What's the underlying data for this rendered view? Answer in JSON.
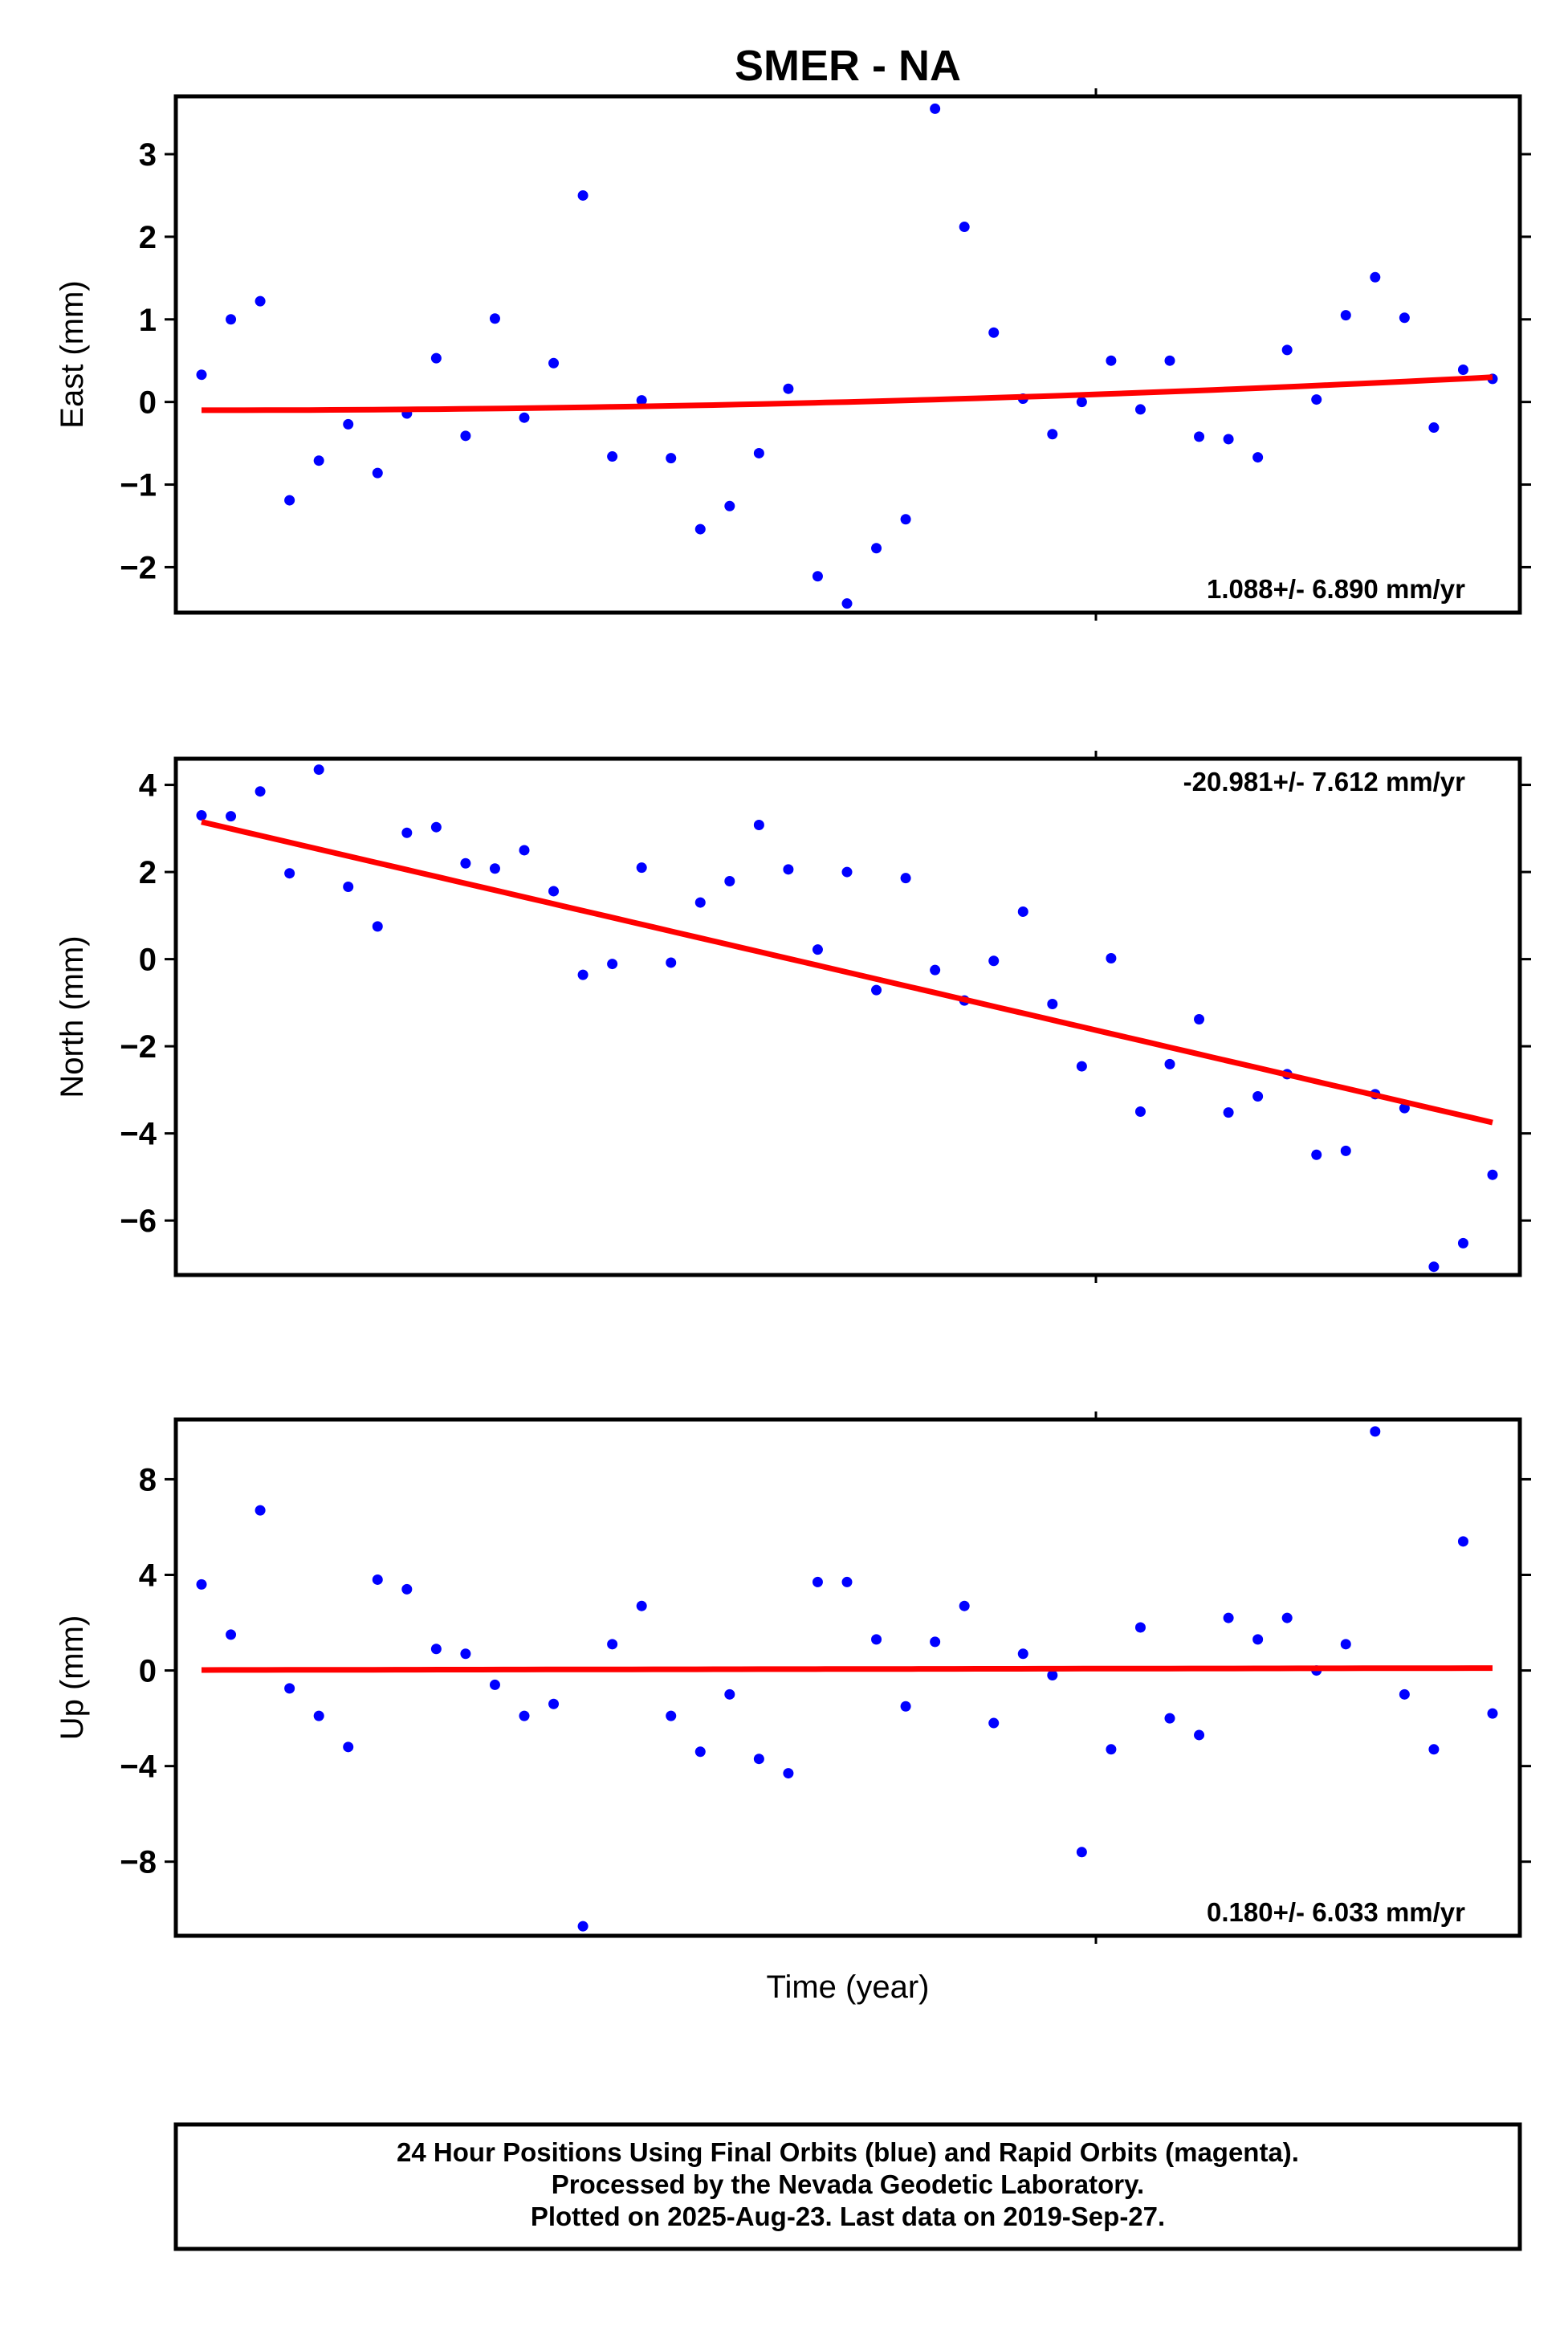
{
  "title": "SMER - NA",
  "x_axis_label": "Time (year)",
  "colors": {
    "final_orbits": "#0000ff",
    "trend": "#ff0000",
    "frame": "#000000"
  },
  "footer": {
    "line1": "24 Hour Positions Using Final Orbits (blue) and Rapid Orbits (magenta).",
    "line2": "Processed by the Nevada Geodetic Laboratory.",
    "line3": "Plotted on 2025-Aug-23. Last data on 2019-Sep-27."
  },
  "chart_data": [
    {
      "type": "scatter",
      "ylabel": "East (mm)",
      "ylim": [
        -2.55,
        3.7
      ],
      "yticks": [
        3,
        2,
        1,
        0,
        -1,
        -2
      ],
      "ytick_labels": [
        "3",
        "2",
        "1",
        "0",
        "−1",
        "−2"
      ],
      "rate_label": "1.088+/- 6.890 mm/yr",
      "rate_position": "bottom-right",
      "series": [
        {
          "values": [
            0.33,
            1.0,
            1.22,
            -1.19,
            -0.71,
            -0.27,
            -0.86,
            -0.14,
            0.53,
            -0.41,
            1.01,
            -0.19,
            0.47,
            2.5,
            -0.66,
            0.02,
            -0.68,
            -1.54,
            -1.26,
            -0.62,
            0.16,
            -2.11,
            -2.44,
            -1.77,
            -1.42,
            3.55,
            2.12,
            0.84,
            0.04,
            -0.39,
            0.0,
            0.5,
            -0.09,
            0.5,
            -0.42,
            -0.45,
            -0.67,
            0.63,
            0.03,
            1.05,
            1.51,
            1.02,
            -0.31,
            0.39,
            0.28
          ]
        }
      ],
      "trend": {
        "start": -0.1,
        "end": 0.3,
        "shape": "quadratic"
      }
    },
    {
      "type": "scatter",
      "ylabel": "North (mm)",
      "ylim": [
        -7.25,
        4.6
      ],
      "yticks": [
        4,
        2,
        0,
        -2,
        -4,
        -6
      ],
      "ytick_labels": [
        "4",
        "2",
        "0",
        "−2",
        "−4",
        "−6"
      ],
      "rate_label": "-20.981+/- 7.612 mm/yr",
      "rate_position": "top-right",
      "series": [
        {
          "values": [
            3.3,
            3.28,
            3.85,
            1.97,
            4.35,
            1.66,
            0.75,
            2.9,
            3.03,
            2.2,
            2.08,
            2.5,
            1.56,
            -0.36,
            -0.11,
            2.1,
            -0.08,
            1.3,
            1.79,
            3.08,
            2.06,
            0.22,
            2.0,
            -0.71,
            1.86,
            -0.25,
            -0.95,
            -0.04,
            1.09,
            -1.03,
            -2.46,
            0.02,
            -3.5,
            -2.41,
            -1.38,
            -3.52,
            -3.15,
            -2.64,
            -4.49,
            -4.4,
            -3.1,
            -3.42,
            -7.06,
            -6.52,
            -4.95
          ]
        }
      ],
      "trend": {
        "start": 3.15,
        "end": -3.75,
        "shape": "linear"
      }
    },
    {
      "type": "scatter",
      "ylabel": "Up (mm)",
      "ylim": [
        -11.1,
        10.5
      ],
      "yticks": [
        8,
        4,
        0,
        -4,
        -8
      ],
      "ytick_labels": [
        "8",
        "4",
        "0",
        "−4",
        "−8"
      ],
      "rate_label": "0.180+/- 6.033 mm/yr",
      "rate_position": "bottom-right",
      "series": [
        {
          "values": [
            3.6,
            1.5,
            6.7,
            -0.75,
            -1.9,
            -3.2,
            3.8,
            3.4,
            0.9,
            0.7,
            -0.6,
            -1.9,
            -1.4,
            -10.7,
            1.1,
            2.7,
            -1.9,
            -3.4,
            -1.0,
            -3.7,
            -4.3,
            3.7,
            3.7,
            1.3,
            -1.5,
            1.2,
            2.7,
            -2.2,
            0.7,
            -0.2,
            -7.6,
            -3.3,
            1.8,
            -2.0,
            -2.7,
            2.2,
            1.3,
            2.2,
            0.0,
            1.1,
            10.0,
            -1.0,
            -3.3,
            5.4,
            -1.8
          ]
        }
      ],
      "trend": {
        "start": 0.02,
        "end": 0.1,
        "shape": "linear"
      }
    }
  ]
}
